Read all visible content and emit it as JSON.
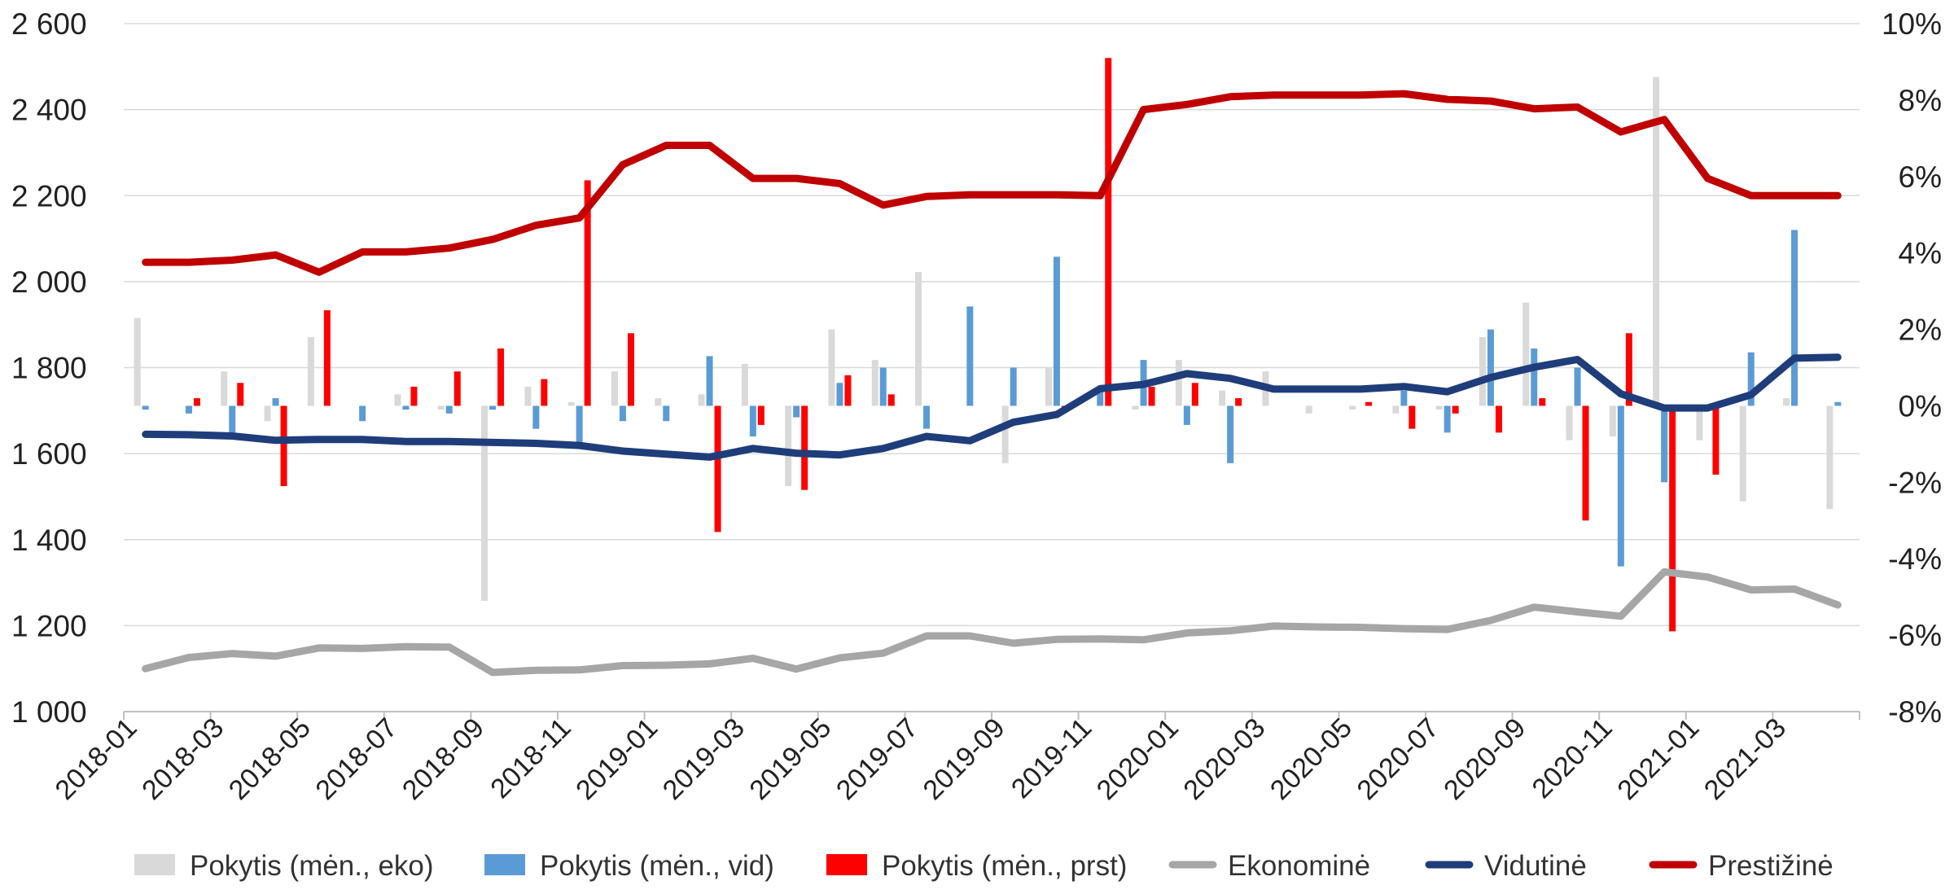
{
  "chart_data": {
    "type": "bar+line",
    "x": [
      "2018-01",
      "2018-02",
      "2018-03",
      "2018-04",
      "2018-05",
      "2018-06",
      "2018-07",
      "2018-08",
      "2018-09",
      "2018-10",
      "2018-11",
      "2018-12",
      "2019-01",
      "2019-02",
      "2019-03",
      "2019-04",
      "2019-05",
      "2019-06",
      "2019-07",
      "2019-08",
      "2019-09",
      "2019-10",
      "2019-11",
      "2019-12",
      "2020-01",
      "2020-02",
      "2020-03",
      "2020-04",
      "2020-05",
      "2020-06",
      "2020-07",
      "2020-08",
      "2020-09",
      "2020-10",
      "2020-11",
      "2020-12",
      "2021-01",
      "2021-02",
      "2021-03",
      "2021-04"
    ],
    "x_tick_labels": [
      "2018-01",
      "2018-03",
      "2018-05",
      "2018-07",
      "2018-09",
      "2018-11",
      "2019-01",
      "2019-03",
      "2019-05",
      "2019-07",
      "2019-09",
      "2019-11",
      "2020-01",
      "2020-03",
      "2020-05",
      "2020-07",
      "2020-09",
      "2020-11",
      "2021-01",
      "2021-03"
    ],
    "y_left": {
      "ticks": [
        1000,
        1200,
        1400,
        1600,
        1800,
        2000,
        2200,
        2400,
        2600
      ],
      "tick_labels": [
        "1 000",
        "1 200",
        "1 400",
        "1 600",
        "1 800",
        "2 000",
        "2 200",
        "2 400",
        "2 600"
      ],
      "ylim": [
        1000,
        2600
      ]
    },
    "y_right": {
      "ticks": [
        -8,
        -6,
        -4,
        -2,
        0,
        2,
        4,
        6,
        8,
        10
      ],
      "tick_labels": [
        "-8%",
        "-6%",
        "-4%",
        "-2%",
        "0%",
        "2%",
        "4%",
        "6%",
        "8%",
        "10%"
      ],
      "ylim": [
        -8,
        10
      ]
    },
    "grid": "horizontal",
    "legend_position": "bottom",
    "bar_series": [
      {
        "name": "Pokytis (mėn., eko)",
        "color": "#d9d9d9",
        "axis": "right",
        "values": [
          2.3,
          0,
          0.9,
          -0.4,
          1.8,
          0,
          0.3,
          -0.1,
          -5.1,
          0.5,
          0.1,
          0.9,
          0.2,
          0.3,
          1.1,
          -2.1,
          2.0,
          1.2,
          3.5,
          0,
          -1.5,
          1.0,
          0,
          -0.1,
          1.2,
          0.4,
          0.9,
          -0.2,
          -0.1,
          -0.2,
          -0.1,
          1.8,
          2.7,
          -0.9,
          -0.8,
          8.6,
          -0.9,
          -2.5,
          0.2,
          -2.7
        ]
      },
      {
        "name": "Pokytis (mėn., vid)",
        "color": "#5b9bd5",
        "axis": "right",
        "values": [
          -0.1,
          -0.2,
          -0.7,
          0.2,
          0,
          -0.4,
          -0.1,
          -0.2,
          -0.1,
          -0.6,
          -1.0,
          -0.4,
          -0.4,
          1.3,
          -0.8,
          -0.3,
          0.6,
          1.0,
          -0.6,
          2.6,
          1.0,
          3.9,
          0.4,
          1.2,
          -0.5,
          -1.5,
          0,
          0,
          0,
          0.4,
          -0.7,
          2.0,
          1.5,
          1.0,
          -4.2,
          -2.0,
          0,
          1.4,
          4.6,
          0.1
        ]
      },
      {
        "name": "Pokytis (mėn., prst)",
        "color": "#ff0000",
        "axis": "right",
        "values": [
          0,
          0.2,
          0.6,
          -2.1,
          2.5,
          0,
          0.5,
          0.9,
          1.5,
          0.7,
          5.9,
          1.9,
          0,
          -3.3,
          -0.5,
          -2.2,
          0.8,
          0.3,
          0,
          0,
          0,
          -0.1,
          9.1,
          0.5,
          0.6,
          0.2,
          0,
          0,
          0.1,
          -0.6,
          -0.2,
          -0.7,
          0.2,
          -3.0,
          1.9,
          -5.9,
          -1.8,
          0,
          0,
          0
        ]
      }
    ],
    "line_series": [
      {
        "name": "Ekonominė",
        "color": "#a6a6a6",
        "axis": "left",
        "values": [
          1100,
          1126,
          1135,
          1129,
          1148,
          1147,
          1151,
          1150,
          1091,
          1096,
          1097,
          1107,
          1108,
          1111,
          1124,
          1099,
          1125,
          1136,
          1176,
          1176,
          1159,
          1168,
          1169,
          1167,
          1183,
          1188,
          1199,
          1197,
          1196,
          1193,
          1191,
          1212,
          1243,
          1232,
          1222,
          1325,
          1313,
          1283,
          1285,
          1248
        ]
      },
      {
        "name": "Vidutinė",
        "color": "#1f3d7a",
        "axis": "left",
        "values": [
          1645,
          1644,
          1641,
          1631,
          1633,
          1633,
          1628,
          1628,
          1626,
          1624,
          1619,
          1606,
          1599,
          1592,
          1612,
          1601,
          1597,
          1612,
          1640,
          1630,
          1673,
          1691,
          1751,
          1761,
          1786,
          1775,
          1750,
          1750,
          1750,
          1756,
          1744,
          1777,
          1801,
          1819,
          1739,
          1706,
          1706,
          1737,
          1822,
          1824
        ]
      },
      {
        "name": "Prestižinė",
        "color": "#c00000",
        "axis": "left",
        "values": [
          2045,
          2045,
          2050,
          2062,
          2022,
          2069,
          2069,
          2078,
          2098,
          2131,
          2148,
          2272,
          2317,
          2317,
          2240,
          2240,
          2228,
          2178,
          2198,
          2202,
          2202,
          2202,
          2200,
          2400,
          2412,
          2430,
          2434,
          2434,
          2434,
          2437,
          2424,
          2420,
          2402,
          2406,
          2348,
          2377,
          2240,
          2200,
          2200,
          2200
        ]
      }
    ]
  }
}
